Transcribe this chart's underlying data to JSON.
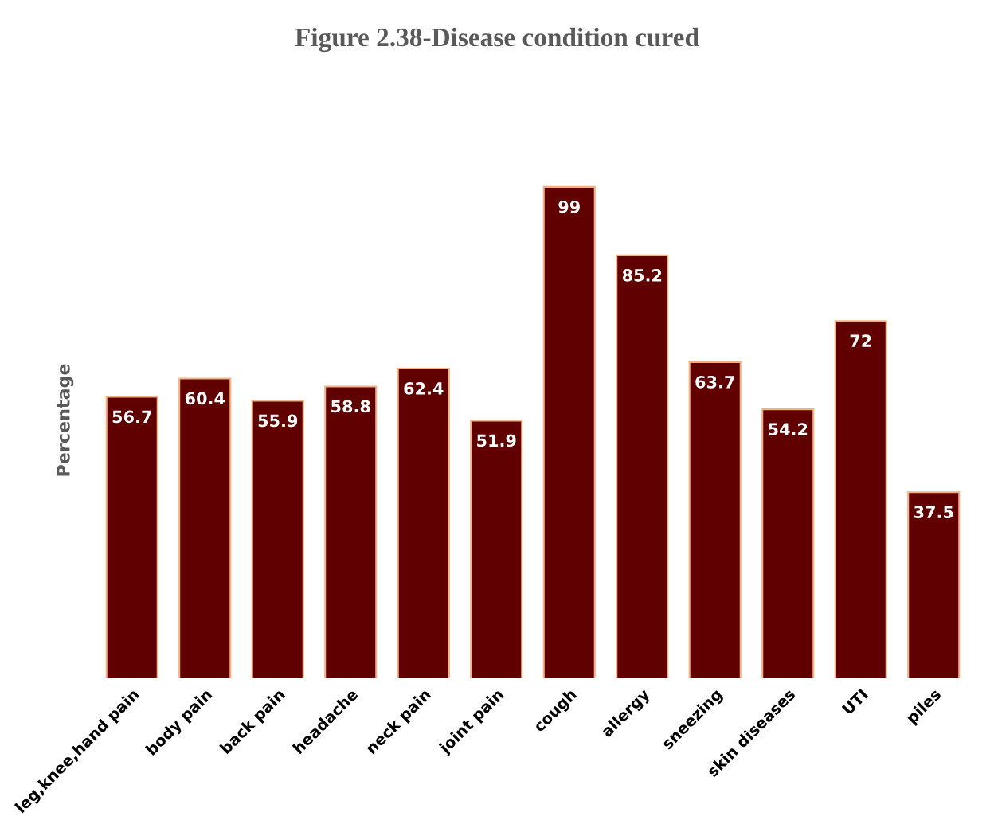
{
  "chart_data": {
    "type": "bar",
    "title": "Figure 2.38-Disease condition cured",
    "ylabel": "Percentage",
    "categories": [
      "leg,knee,hand pain",
      "body pain",
      "back pain",
      "headache",
      "neck pain",
      "joint pain",
      "cough",
      "allergy",
      "sneezing",
      "skin diseases",
      "UTI",
      "piles"
    ],
    "values": [
      56.7,
      60.4,
      55.9,
      58.8,
      62.4,
      51.9,
      99,
      85.2,
      63.7,
      54.2,
      72,
      37.5
    ],
    "color": "#600000",
    "data_labels": true,
    "tick_labels": "x",
    "grid": false
  }
}
